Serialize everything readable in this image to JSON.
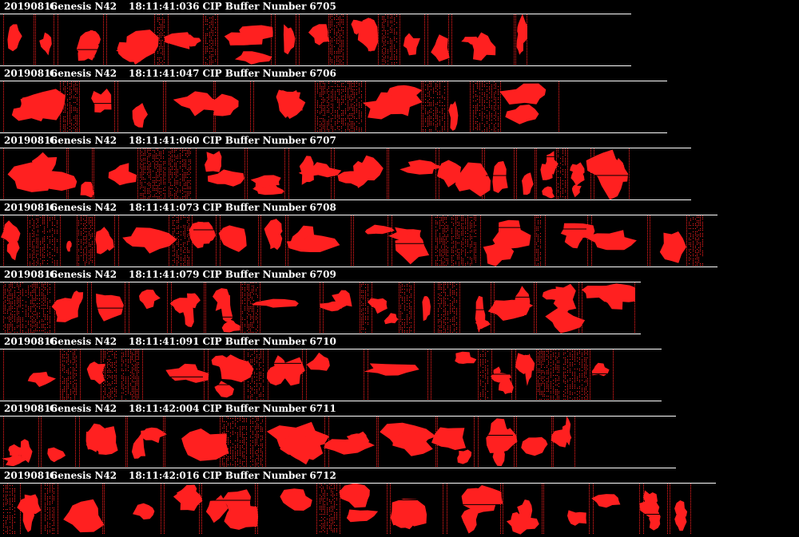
{
  "colors": {
    "background": "#000000",
    "particle": "#ff2020",
    "header_text": "#ffffff",
    "rule": "#ffffff"
  },
  "buffers": [
    {
      "date": "20190816",
      "probe": "Genesis N42",
      "time": "18:11:41:036",
      "label": "CIP Buffer Number",
      "number": "6705"
    },
    {
      "date": "20190816",
      "probe": "Genesis N42",
      "time": "18:11:41:047",
      "label": "CIP Buffer Number",
      "number": "6706"
    },
    {
      "date": "20190816",
      "probe": "Genesis N42",
      "time": "18:11:41:060",
      "label": "CIP Buffer Number",
      "number": "6707"
    },
    {
      "date": "20190816",
      "probe": "Genesis N42",
      "time": "18:11:41:073",
      "label": "CIP Buffer Number",
      "number": "6708"
    },
    {
      "date": "20190816",
      "probe": "Genesis N42",
      "time": "18:11:41:079",
      "label": "CIP Buffer Number",
      "number": "6709"
    },
    {
      "date": "20190816",
      "probe": "Genesis N42",
      "time": "18:11:41:091",
      "label": "CIP Buffer Number",
      "number": "6710"
    },
    {
      "date": "20190816",
      "probe": "Genesis N42",
      "time": "18:11:42:004",
      "label": "CIP Buffer Number",
      "number": "6711"
    },
    {
      "date": "20190816",
      "probe": "Genesis N42",
      "time": "18:11:42:016",
      "label": "CIP Buffer Number",
      "number": "6712"
    }
  ]
}
